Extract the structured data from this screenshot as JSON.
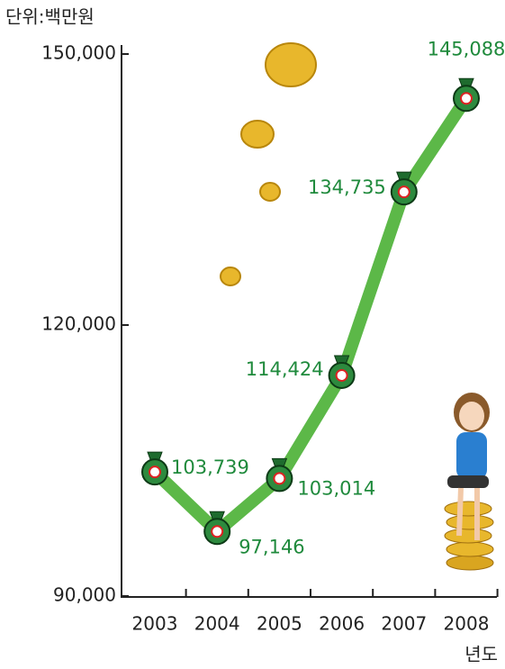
{
  "chart_data": {
    "type": "line",
    "unit_label": "단위:백만원",
    "x_label": "년도",
    "categories": [
      "2003",
      "2004",
      "2005",
      "2006",
      "2007",
      "2008"
    ],
    "series": [
      {
        "color": "#5cb848",
        "values": [
          103739,
          97146,
          103014,
          114424,
          134735,
          145088
        ],
        "value_labels": [
          "103,739",
          "97,146",
          "103,014",
          "114,424",
          "134,735",
          "145,088"
        ]
      }
    ],
    "ylim": [
      90000,
      150000
    ],
    "yticks": [
      {
        "value": 90000,
        "label": "90,000"
      },
      {
        "value": 120000,
        "label": "120,000"
      },
      {
        "value": 150000,
        "label": "150,000"
      }
    ]
  }
}
